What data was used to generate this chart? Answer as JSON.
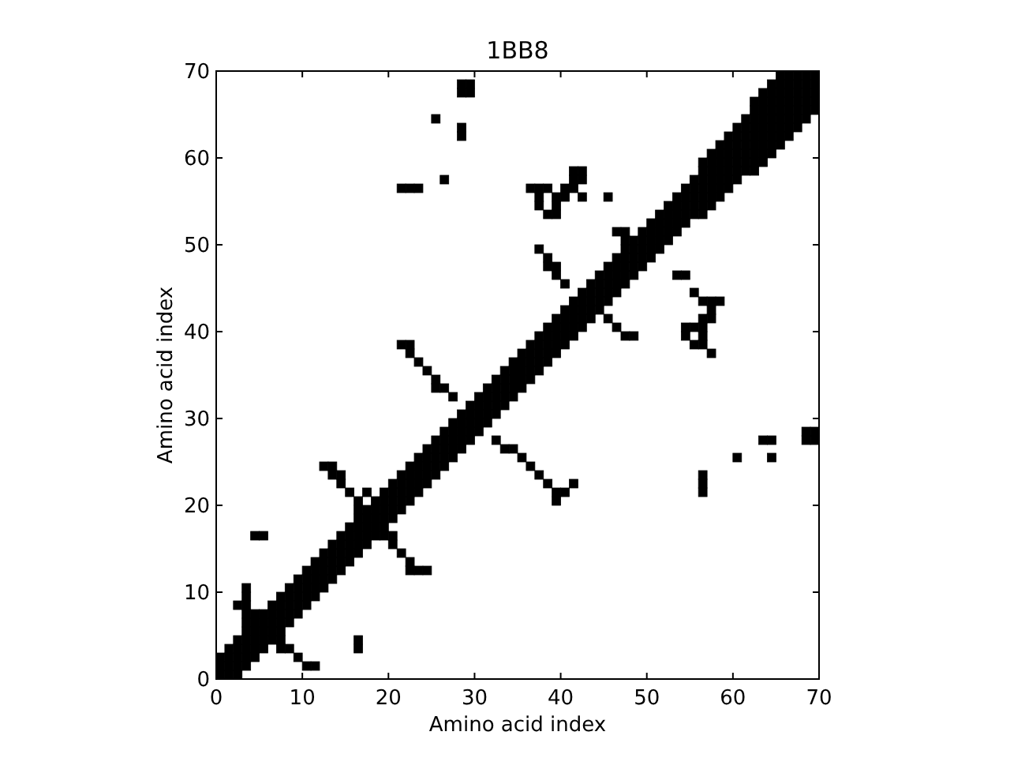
{
  "chart_data": {
    "type": "scatter",
    "title": "1BB8",
    "xlabel": "Amino acid index",
    "ylabel": "Amino acid index",
    "xlim": [
      0,
      70
    ],
    "ylim": [
      0,
      70
    ],
    "xticks": [
      0,
      10,
      20,
      30,
      40,
      50,
      60,
      70
    ],
    "yticks": [
      0,
      10,
      20,
      30,
      40,
      50,
      60,
      70
    ],
    "marker": "square",
    "grid": false,
    "series": [
      {
        "color": "#000000",
        "x": [
          0.5,
          0.5,
          0.5,
          1.5,
          1.5,
          1.5,
          1.5,
          2.5,
          2.5,
          2.5,
          2.5,
          2.5,
          3.5,
          3.5,
          3.5,
          3.5,
          3.5,
          4.5,
          4.5,
          4.5,
          4.5,
          4.5,
          5.5,
          5.5,
          5.5,
          5.5,
          5.5,
          6.5,
          6.5,
          6.5,
          6.5,
          6.5,
          7.5,
          7.5,
          7.5,
          7.5,
          7.5,
          8.5,
          8.5,
          8.5,
          8.5,
          8.5,
          9.5,
          9.5,
          9.5,
          9.5,
          9.5,
          10.5,
          10.5,
          10.5,
          10.5,
          10.5,
          11.5,
          11.5,
          11.5,
          11.5,
          11.5,
          12.5,
          12.5,
          12.5,
          12.5,
          12.5,
          13.5,
          13.5,
          13.5,
          13.5,
          13.5,
          14.5,
          14.5,
          14.5,
          14.5,
          14.5,
          15.5,
          15.5,
          15.5,
          15.5,
          15.5,
          16.5,
          16.5,
          16.5,
          16.5,
          16.5,
          17.5,
          17.5,
          17.5,
          17.5,
          17.5,
          18.5,
          18.5,
          18.5,
          18.5,
          18.5,
          19.5,
          19.5,
          19.5,
          19.5,
          19.5,
          20.5,
          20.5,
          20.5,
          20.5,
          20.5,
          21.5,
          21.5,
          21.5,
          21.5,
          21.5,
          22.5,
          22.5,
          22.5,
          22.5,
          22.5,
          23.5,
          23.5,
          23.5,
          23.5,
          23.5,
          24.5,
          24.5,
          24.5,
          24.5,
          24.5,
          25.5,
          25.5,
          25.5,
          25.5,
          25.5,
          26.5,
          26.5,
          26.5,
          26.5,
          26.5,
          27.5,
          27.5,
          27.5,
          27.5,
          27.5,
          28.5,
          28.5,
          28.5,
          28.5,
          28.5,
          29.5,
          29.5,
          29.5,
          29.5,
          29.5,
          30.5,
          30.5,
          30.5,
          30.5,
          30.5,
          31.5,
          31.5,
          31.5,
          31.5,
          31.5,
          32.5,
          32.5,
          32.5,
          32.5,
          32.5,
          33.5,
          33.5,
          33.5,
          33.5,
          33.5,
          34.5,
          34.5,
          34.5,
          34.5,
          34.5,
          35.5,
          35.5,
          35.5,
          35.5,
          35.5,
          36.5,
          36.5,
          36.5,
          36.5,
          36.5,
          37.5,
          37.5,
          37.5,
          37.5,
          37.5,
          38.5,
          38.5,
          38.5,
          38.5,
          38.5,
          39.5,
          39.5,
          39.5,
          39.5,
          39.5,
          40.5,
          40.5,
          40.5,
          40.5,
          40.5,
          41.5,
          41.5,
          41.5,
          41.5,
          41.5,
          42.5,
          42.5,
          42.5,
          42.5,
          42.5,
          43.5,
          43.5,
          43.5,
          43.5,
          43.5,
          44.5,
          44.5,
          44.5,
          44.5,
          44.5,
          45.5,
          45.5,
          45.5,
          45.5,
          45.5,
          46.5,
          46.5,
          46.5,
          46.5,
          46.5,
          47.5,
          47.5,
          47.5,
          47.5,
          47.5,
          48.5,
          48.5,
          48.5,
          48.5,
          48.5,
          49.5,
          49.5,
          49.5,
          49.5,
          49.5,
          50.5,
          50.5,
          50.5,
          50.5,
          50.5,
          51.5,
          51.5,
          51.5,
          51.5,
          51.5,
          52.5,
          52.5,
          52.5,
          52.5,
          52.5,
          53.5,
          53.5,
          53.5,
          53.5,
          53.5,
          54.5,
          54.5,
          54.5,
          54.5,
          54.5,
          55.5,
          55.5,
          55.5,
          55.5,
          55.5,
          56.5,
          56.5,
          56.5,
          56.5,
          56.5,
          56.5,
          56.5,
          57.5,
          57.5,
          57.5,
          57.5,
          57.5,
          57.5,
          57.5,
          58.5,
          58.5,
          58.5,
          58.5,
          58.5,
          58.5,
          58.5,
          59.5,
          59.5,
          59.5,
          59.5,
          59.5,
          59.5,
          59.5,
          60.5,
          60.5,
          60.5,
          60.5,
          60.5,
          60.5,
          60.5,
          61.5,
          61.5,
          61.5,
          61.5,
          61.5,
          61.5,
          61.5,
          62.5,
          62.5,
          62.5,
          62.5,
          62.5,
          62.5,
          62.5,
          62.5,
          62.5,
          63.5,
          63.5,
          63.5,
          63.5,
          63.5,
          63.5,
          63.5,
          63.5,
          63.5,
          64.5,
          64.5,
          64.5,
          64.5,
          64.5,
          64.5,
          64.5,
          64.5,
          64.5,
          65.5,
          65.5,
          65.5,
          65.5,
          65.5,
          65.5,
          65.5,
          65.5,
          65.5,
          66.5,
          66.5,
          66.5,
          66.5,
          66.5,
          66.5,
          66.5,
          66.5,
          67.5,
          67.5,
          67.5,
          67.5,
          67.5,
          67.5,
          67.5,
          68.5,
          68.5,
          68.5,
          68.5,
          68.5,
          68.5,
          69.5,
          69.5,
          69.5,
          69.5,
          69.5,
          3.5,
          3.5,
          3.5,
          3.5,
          3.5,
          2.5,
          4.5,
          7.5,
          7.5,
          8.5,
          9.5,
          10.5,
          11.5,
          16.5,
          16.5,
          4.5,
          5.5,
          16.5,
          19.5,
          20.5,
          17.5,
          16.5,
          15.5,
          14.5,
          14.5,
          13.5,
          13.5,
          12.5,
          20.5,
          21.5,
          22.5,
          22.5,
          23.5,
          24.5,
          27.5,
          26.5,
          25.5,
          25.5,
          24.5,
          23.5,
          22.5,
          22.5,
          21.5,
          32.5,
          33.5,
          34.5,
          35.5,
          36.5,
          37.5,
          38.5,
          39.5,
          40.5,
          39.5,
          41.5,
          37.5,
          38.5,
          38.5,
          39.5,
          39.5,
          40.5,
          45.5,
          46.5,
          47.5,
          48.5,
          53.5,
          54.5,
          55.5,
          56.5,
          57.5,
          58.5,
          57.5,
          56.5,
          57.5,
          54.5,
          55.5,
          56.5,
          54.5,
          56.5,
          55.5,
          56.5,
          57.5,
          36.5,
          37.5,
          38.5,
          37.5,
          39.5,
          37.5,
          39.5,
          38.5,
          39.5,
          40.5,
          40.5,
          41.5,
          41.5,
          42.5,
          42.5,
          41.5,
          42.5,
          45.5,
          47.5,
          47.5,
          46.5,
          28.5,
          29.5,
          28.5,
          29.5,
          25.5,
          28.5,
          28.5,
          26.5,
          21.5,
          22.5,
          23.5,
          56.5,
          56.5,
          56.5,
          60.5,
          63.5,
          64.5,
          64.5,
          68.5,
          69.5,
          68.5,
          69.5
        ],
        "values": [
          0.5,
          1.5,
          2.5,
          0.5,
          1.5,
          2.5,
          3.5,
          0.5,
          1.5,
          2.5,
          3.5,
          4.5,
          1.5,
          2.5,
          3.5,
          4.5,
          5.5,
          2.5,
          3.5,
          4.5,
          5.5,
          6.5,
          3.5,
          4.5,
          5.5,
          6.5,
          7.5,
          4.5,
          5.5,
          6.5,
          7.5,
          8.5,
          5.5,
          6.5,
          7.5,
          8.5,
          9.5,
          6.5,
          7.5,
          8.5,
          9.5,
          10.5,
          7.5,
          8.5,
          9.5,
          10.5,
          11.5,
          8.5,
          9.5,
          10.5,
          11.5,
          12.5,
          9.5,
          10.5,
          11.5,
          12.5,
          13.5,
          10.5,
          11.5,
          12.5,
          13.5,
          14.5,
          11.5,
          12.5,
          13.5,
          14.5,
          15.5,
          12.5,
          13.5,
          14.5,
          15.5,
          16.5,
          13.5,
          14.5,
          15.5,
          16.5,
          17.5,
          14.5,
          15.5,
          16.5,
          17.5,
          18.5,
          15.5,
          16.5,
          17.5,
          18.5,
          19.5,
          16.5,
          17.5,
          18.5,
          19.5,
          20.5,
          17.5,
          18.5,
          19.5,
          20.5,
          21.5,
          18.5,
          19.5,
          20.5,
          21.5,
          22.5,
          19.5,
          20.5,
          21.5,
          22.5,
          23.5,
          20.5,
          21.5,
          22.5,
          23.5,
          24.5,
          21.5,
          22.5,
          23.5,
          24.5,
          25.5,
          22.5,
          23.5,
          24.5,
          25.5,
          26.5,
          23.5,
          24.5,
          25.5,
          26.5,
          27.5,
          24.5,
          25.5,
          26.5,
          27.5,
          28.5,
          25.5,
          26.5,
          27.5,
          28.5,
          29.5,
          26.5,
          27.5,
          28.5,
          29.5,
          30.5,
          27.5,
          28.5,
          29.5,
          30.5,
          31.5,
          28.5,
          29.5,
          30.5,
          31.5,
          32.5,
          29.5,
          30.5,
          31.5,
          32.5,
          33.5,
          30.5,
          31.5,
          32.5,
          33.5,
          34.5,
          31.5,
          32.5,
          33.5,
          34.5,
          35.5,
          32.5,
          33.5,
          34.5,
          35.5,
          36.5,
          33.5,
          34.5,
          35.5,
          36.5,
          37.5,
          34.5,
          35.5,
          36.5,
          37.5,
          38.5,
          35.5,
          36.5,
          37.5,
          38.5,
          39.5,
          36.5,
          37.5,
          38.5,
          39.5,
          40.5,
          37.5,
          38.5,
          39.5,
          40.5,
          41.5,
          38.5,
          39.5,
          40.5,
          41.5,
          42.5,
          39.5,
          40.5,
          41.5,
          42.5,
          43.5,
          40.5,
          41.5,
          42.5,
          43.5,
          44.5,
          41.5,
          42.5,
          43.5,
          44.5,
          45.5,
          42.5,
          43.5,
          44.5,
          45.5,
          46.5,
          43.5,
          44.5,
          45.5,
          46.5,
          47.5,
          44.5,
          45.5,
          46.5,
          47.5,
          48.5,
          45.5,
          46.5,
          47.5,
          48.5,
          49.5,
          46.5,
          47.5,
          48.5,
          49.5,
          50.5,
          47.5,
          48.5,
          49.5,
          50.5,
          51.5,
          48.5,
          49.5,
          50.5,
          51.5,
          52.5,
          49.5,
          50.5,
          51.5,
          52.5,
          53.5,
          50.5,
          51.5,
          52.5,
          53.5,
          54.5,
          51.5,
          52.5,
          53.5,
          54.5,
          55.5,
          52.5,
          53.5,
          54.5,
          55.5,
          56.5,
          53.5,
          54.5,
          55.5,
          56.5,
          57.5,
          53.5,
          54.5,
          55.5,
          56.5,
          57.5,
          58.5,
          59.5,
          54.5,
          55.5,
          56.5,
          57.5,
          58.5,
          59.5,
          60.5,
          55.5,
          56.5,
          57.5,
          58.5,
          59.5,
          60.5,
          61.5,
          56.5,
          57.5,
          58.5,
          59.5,
          60.5,
          61.5,
          62.5,
          57.5,
          58.5,
          59.5,
          60.5,
          61.5,
          62.5,
          63.5,
          58.5,
          59.5,
          60.5,
          61.5,
          62.5,
          63.5,
          64.5,
          58.5,
          59.5,
          60.5,
          61.5,
          62.5,
          63.5,
          64.5,
          65.5,
          66.5,
          59.5,
          60.5,
          61.5,
          62.5,
          63.5,
          64.5,
          65.5,
          66.5,
          67.5,
          60.5,
          61.5,
          62.5,
          63.5,
          64.5,
          65.5,
          66.5,
          67.5,
          68.5,
          61.5,
          62.5,
          63.5,
          64.5,
          65.5,
          66.5,
          67.5,
          68.5,
          69.5,
          62.5,
          63.5,
          64.5,
          65.5,
          66.5,
          67.5,
          68.5,
          69.5,
          63.5,
          64.5,
          65.5,
          66.5,
          67.5,
          68.5,
          69.5,
          64.5,
          65.5,
          66.5,
          67.5,
          68.5,
          69.5,
          65.5,
          66.5,
          67.5,
          68.5,
          69.5,
          6.5,
          7.5,
          8.5,
          9.5,
          10.5,
          8.5,
          7.5,
          3.5,
          4.5,
          3.5,
          2.5,
          1.5,
          1.5,
          3.5,
          4.5,
          16.5,
          16.5,
          19.5,
          16.5,
          16.5,
          21.5,
          20.5,
          21.5,
          22.5,
          23.5,
          23.5,
          24.5,
          24.5,
          15.5,
          14.5,
          13.5,
          12.5,
          12.5,
          12.5,
          32.5,
          33.5,
          33.5,
          34.5,
          35.5,
          36.5,
          37.5,
          38.5,
          38.5,
          27.5,
          26.5,
          26.5,
          25.5,
          24.5,
          23.5,
          22.5,
          21.5,
          21.5,
          20.5,
          22.5,
          49.5,
          48.5,
          47.5,
          47.5,
          46.5,
          45.5,
          41.5,
          40.5,
          39.5,
          39.5,
          46.5,
          46.5,
          44.5,
          43.5,
          43.5,
          43.5,
          42.5,
          41.5,
          41.5,
          40.5,
          40.5,
          40.5,
          39.5,
          39.5,
          38.5,
          38.5,
          37.5,
          56.5,
          56.5,
          56.5,
          55.5,
          55.5,
          54.5,
          54.5,
          53.5,
          53.5,
          55.5,
          56.5,
          56.5,
          57.5,
          57.5,
          58.5,
          58.5,
          55.5,
          55.5,
          50.5,
          51.5,
          51.5,
          67.5,
          67.5,
          68.5,
          68.5,
          64.5,
          62.5,
          63.5,
          57.5,
          56.5,
          56.5,
          56.5,
          21.5,
          22.5,
          23.5,
          25.5,
          27.5,
          27.5,
          25.5,
          27.5,
          27.5,
          28.5,
          28.5
        ]
      }
    ]
  }
}
